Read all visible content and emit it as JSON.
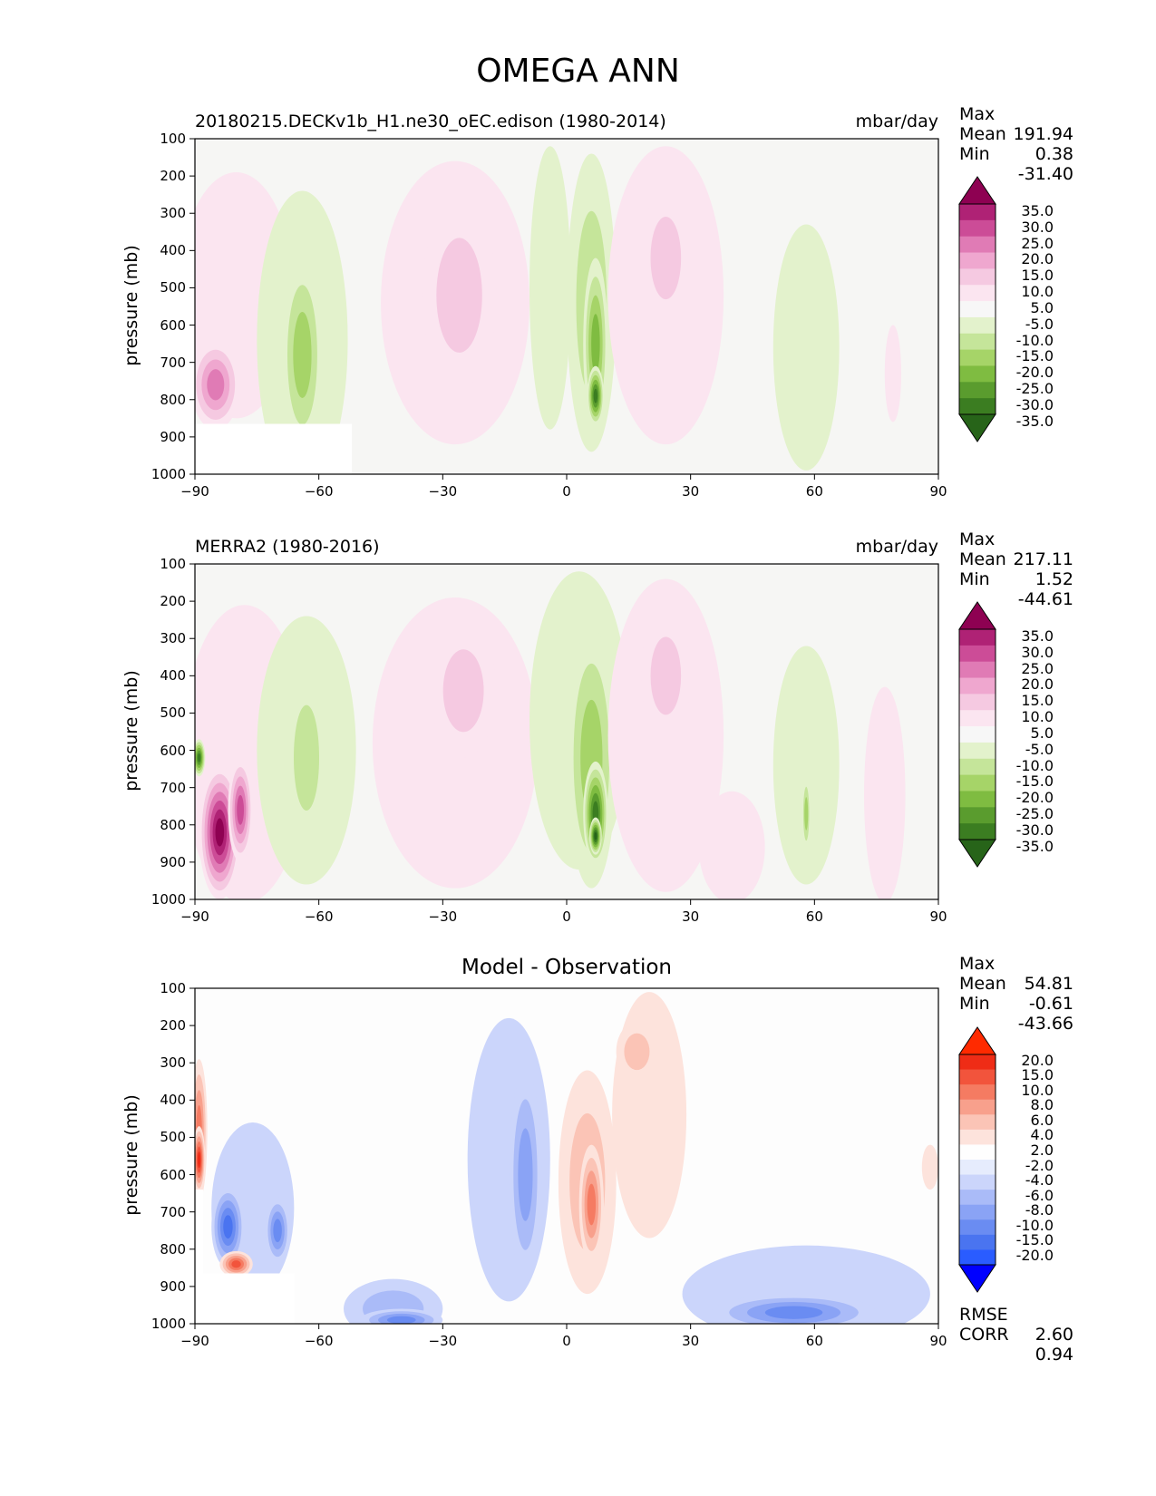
{
  "figure_title": "OMEGA ANN",
  "palettes": {
    "field": [
      "#276419",
      "#3b7d21",
      "#5a9c2e",
      "#7fbc41",
      "#a6d468",
      "#c5e59a",
      "#e3f2cc",
      "#f7f7f7",
      "#fbe5f0",
      "#f5c9e1",
      "#efa7cf",
      "#e07bb5",
      "#cc4c97",
      "#af2275",
      "#8e0152"
    ],
    "diff": [
      "#0000ff",
      "#2a5cff",
      "#4a74f0",
      "#6a8cf2",
      "#8aa3f5",
      "#aabbf8",
      "#cbd5fb",
      "#e6ecfd",
      "#fefefe",
      "#fde3dc",
      "#fbc4b6",
      "#f8a08c",
      "#f57b62",
      "#f2543c",
      "#ef2c16",
      "#ff2a00"
    ]
  },
  "chart_data": [
    {
      "type": "contour",
      "panel": "model",
      "title_left": "20180215.DECKv1b_H1.ne30_oEC.edison (1980-2014)",
      "title_right": "mbar/day",
      "xlabel": "",
      "ylabel": "pressure (mb)",
      "xlim": [
        -90,
        90
      ],
      "ylim": [
        1000,
        100
      ],
      "xticks": [
        "−90",
        "−60",
        "−30",
        "0",
        "30",
        "60",
        "90"
      ],
      "yticks": [
        "100",
        "200",
        "300",
        "400",
        "500",
        "600",
        "700",
        "800",
        "900",
        "1000"
      ],
      "stats": {
        "max_label": "Max",
        "max": "191.94",
        "mean_label": "Mean",
        "mean": "0.38",
        "min_label": "Min",
        "min": "-31.40"
      },
      "colorbar_labels": [
        "35.0",
        "30.0",
        "25.0",
        "20.0",
        "15.0",
        "10.0",
        "5.0",
        "-5.0",
        "-10.0",
        "-15.0",
        "-20.0",
        "-25.0",
        "-30.0",
        "-35.0"
      ],
      "blobs": [
        {
          "lat": -80,
          "p": 520,
          "rx": 14,
          "rp": 330,
          "level": 8
        },
        {
          "lat": -85,
          "p": 790,
          "rx": 4,
          "rp": 90,
          "level": 14
        },
        {
          "lat": -85,
          "p": 760,
          "rx": 6,
          "rp": 120,
          "level": 11
        },
        {
          "lat": -64,
          "p": 640,
          "rx": 11,
          "rp": 400,
          "level": 6
        },
        {
          "lat": -64,
          "p": 680,
          "rx": 5,
          "rp": 260,
          "level": 4
        },
        {
          "lat": -27,
          "p": 540,
          "rx": 18,
          "rp": 380,
          "level": 8
        },
        {
          "lat": -26,
          "p": 520,
          "rx": 9,
          "rp": 250,
          "level": 9
        },
        {
          "lat": -4,
          "p": 500,
          "rx": 5,
          "rp": 380,
          "level": 6
        },
        {
          "lat": 6,
          "p": 540,
          "rx": 6,
          "rp": 400,
          "level": 5
        },
        {
          "lat": 7,
          "p": 650,
          "rx": 3,
          "rp": 230,
          "level": 3
        },
        {
          "lat": 7,
          "p": 790,
          "rx": 2,
          "rp": 80,
          "level": 1
        },
        {
          "lat": 24,
          "p": 520,
          "rx": 14,
          "rp": 400,
          "level": 8
        },
        {
          "lat": 24,
          "p": 420,
          "rx": 6,
          "rp": 180,
          "level": 9
        },
        {
          "lat": 58,
          "p": 660,
          "rx": 8,
          "rp": 330,
          "level": 6
        },
        {
          "lat": 79,
          "p": 730,
          "rx": 2,
          "rp": 130,
          "level": 8
        }
      ],
      "masks": [
        {
          "lat0": -90,
          "lat1": -52,
          "p0": 865,
          "p1": 1000
        }
      ]
    },
    {
      "type": "contour",
      "panel": "observation",
      "title_left": "MERRA2 (1980-2016)",
      "title_right": "mbar/day",
      "xlabel": "",
      "ylabel": "pressure (mb)",
      "xlim": [
        -90,
        90
      ],
      "ylim": [
        1000,
        100
      ],
      "xticks": [
        "−90",
        "−60",
        "−30",
        "0",
        "30",
        "60",
        "90"
      ],
      "yticks": [
        "100",
        "200",
        "300",
        "400",
        "500",
        "600",
        "700",
        "800",
        "900",
        "1000"
      ],
      "stats": {
        "max_label": "Max",
        "max": "217.11",
        "mean_label": "Mean",
        "mean": "1.52",
        "min_label": "Min",
        "min": "-44.61"
      },
      "colorbar_labels": [
        "35.0",
        "30.0",
        "25.0",
        "20.0",
        "15.0",
        "10.0",
        "5.0",
        "-5.0",
        "-10.0",
        "-15.0",
        "-20.0",
        "-25.0",
        "-30.0",
        "-35.0"
      ],
      "blobs": [
        {
          "lat": -78,
          "p": 610,
          "rx": 15,
          "rp": 400,
          "level": 8
        },
        {
          "lat": -84,
          "p": 820,
          "rx": 5,
          "rp": 180,
          "level": 14
        },
        {
          "lat": -79,
          "p": 760,
          "rx": 3,
          "rp": 140,
          "level": 12
        },
        {
          "lat": -70,
          "p": 760,
          "rx": 2,
          "rp": 90,
          "level": 13
        },
        {
          "lat": -89,
          "p": 620,
          "rx": 1.5,
          "rp": 50,
          "level": 1
        },
        {
          "lat": -63,
          "p": 600,
          "rx": 12,
          "rp": 360,
          "level": 6
        },
        {
          "lat": -63,
          "p": 620,
          "rx": 5,
          "rp": 230,
          "level": 5
        },
        {
          "lat": -27,
          "p": 580,
          "rx": 20,
          "rp": 390,
          "level": 8
        },
        {
          "lat": -25,
          "p": 440,
          "rx": 8,
          "rp": 180,
          "level": 9
        },
        {
          "lat": 3,
          "p": 520,
          "rx": 12,
          "rp": 400,
          "level": 6
        },
        {
          "lat": 6,
          "p": 620,
          "rx": 6,
          "rp": 350,
          "level": 4
        },
        {
          "lat": 7,
          "p": 770,
          "rx": 3,
          "rp": 140,
          "level": 1
        },
        {
          "lat": 7,
          "p": 830,
          "rx": 1.5,
          "rp": 50,
          "level": 0
        },
        {
          "lat": 24,
          "p": 560,
          "rx": 14,
          "rp": 420,
          "level": 8
        },
        {
          "lat": 24,
          "p": 400,
          "rx": 6,
          "rp": 170,
          "level": 9
        },
        {
          "lat": 58,
          "p": 640,
          "rx": 8,
          "rp": 320,
          "level": 6
        },
        {
          "lat": 58,
          "p": 770,
          "rx": 1,
          "rp": 100,
          "level": 4
        },
        {
          "lat": 40,
          "p": 860,
          "rx": 8,
          "rp": 150,
          "level": 8
        },
        {
          "lat": 77,
          "p": 720,
          "rx": 5,
          "rp": 290,
          "level": 8
        }
      ],
      "masks": []
    },
    {
      "type": "contour",
      "panel": "difference",
      "title_center": "Model - Observation",
      "xlabel": "",
      "ylabel": "pressure (mb)",
      "xlim": [
        -90,
        90
      ],
      "ylim": [
        1000,
        100
      ],
      "xticks": [
        "−90",
        "−60",
        "−30",
        "0",
        "30",
        "60",
        "90"
      ],
      "yticks": [
        "100",
        "200",
        "300",
        "400",
        "500",
        "600",
        "700",
        "800",
        "900",
        "1000"
      ],
      "stats": {
        "max_label": "Max",
        "max": "54.81",
        "mean_label": "Mean",
        "mean": "-0.61",
        "min_label": "Min",
        "min": "-43.66",
        "rmse_label": "RMSE",
        "rmse": "2.60",
        "corr_label": "CORR",
        "corr": "0.94"
      },
      "colorbar_labels": [
        "20.0",
        "15.0",
        "10.0",
        "8.0",
        "6.0",
        "4.0",
        "2.0",
        "-2.0",
        "-4.0",
        "-6.0",
        "-8.0",
        "-10.0",
        "-15.0",
        "-20.0"
      ],
      "blobs": [
        {
          "lat": -89,
          "p": 480,
          "rx": 2,
          "rp": 190,
          "level": 12
        },
        {
          "lat": -89,
          "p": 560,
          "rx": 1.5,
          "rp": 90,
          "level": 14
        },
        {
          "lat": -76,
          "p": 690,
          "rx": 10,
          "rp": 230,
          "level": 6
        },
        {
          "lat": -82,
          "p": 740,
          "rx": 4,
          "rp": 110,
          "level": 2
        },
        {
          "lat": -70,
          "p": 750,
          "rx": 3,
          "rp": 90,
          "level": 3
        },
        {
          "lat": -80,
          "p": 840,
          "rx": 4,
          "rp": 35,
          "level": 13
        },
        {
          "lat": -42,
          "p": 960,
          "rx": 12,
          "rp": 80,
          "level": 5
        },
        {
          "lat": -40,
          "p": 990,
          "rx": 10,
          "rp": 30,
          "level": 3
        },
        {
          "lat": -14,
          "p": 560,
          "rx": 10,
          "rp": 380,
          "level": 6
        },
        {
          "lat": -10,
          "p": 600,
          "rx": 4,
          "rp": 280,
          "level": 4
        },
        {
          "lat": 5,
          "p": 620,
          "rx": 7,
          "rp": 300,
          "level": 10
        },
        {
          "lat": 6,
          "p": 680,
          "rx": 3,
          "rp": 160,
          "level": 12
        },
        {
          "lat": 20,
          "p": 440,
          "rx": 9,
          "rp": 330,
          "level": 9
        },
        {
          "lat": 17,
          "p": 270,
          "rx": 5,
          "rp": 80,
          "level": 10
        },
        {
          "lat": 58,
          "p": 920,
          "rx": 30,
          "rp": 130,
          "level": 6
        },
        {
          "lat": 55,
          "p": 970,
          "rx": 20,
          "rp": 50,
          "level": 3
        },
        {
          "lat": 73,
          "p": 760,
          "rx": 5,
          "rp": 110,
          "level": 7
        },
        {
          "lat": 88,
          "p": 580,
          "rx": 2,
          "rp": 60,
          "level": 9
        }
      ],
      "masks": [
        {
          "lat0": -90,
          "lat1": -66,
          "p0": 865,
          "p1": 1000
        },
        {
          "lat0": -90,
          "lat1": -88,
          "p0": 640,
          "p1": 865
        }
      ]
    }
  ]
}
